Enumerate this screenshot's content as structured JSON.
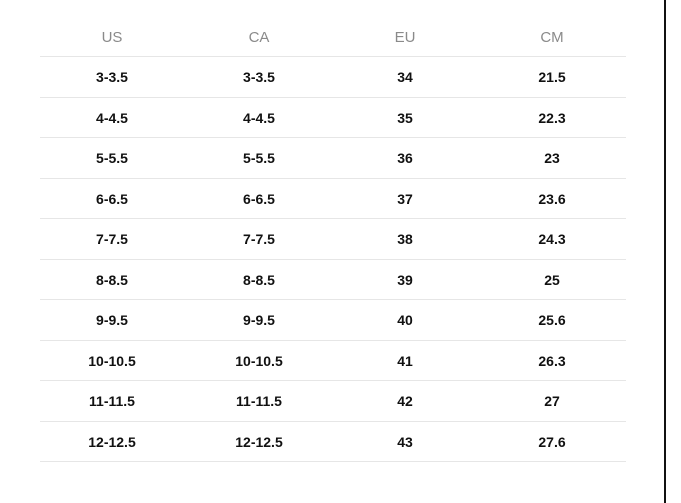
{
  "table": {
    "header": [
      "US",
      "CA",
      "EU",
      "CM"
    ],
    "rows": [
      [
        "3-3.5",
        "3-3.5",
        "34",
        "21.5"
      ],
      [
        "4-4.5",
        "4-4.5",
        "35",
        "22.3"
      ],
      [
        "5-5.5",
        "5-5.5",
        "36",
        "23"
      ],
      [
        "6-6.5",
        "6-6.5",
        "37",
        "23.6"
      ],
      [
        "7-7.5",
        "7-7.5",
        "38",
        "24.3"
      ],
      [
        "8-8.5",
        "8-8.5",
        "39",
        "25"
      ],
      [
        "9-9.5",
        "9-9.5",
        "40",
        "25.6"
      ],
      [
        "10-10.5",
        "10-10.5",
        "41",
        "26.3"
      ],
      [
        "11-11.5",
        "11-11.5",
        "42",
        "27"
      ],
      [
        "12-12.5",
        "12-12.5",
        "43",
        "27.6"
      ]
    ]
  }
}
